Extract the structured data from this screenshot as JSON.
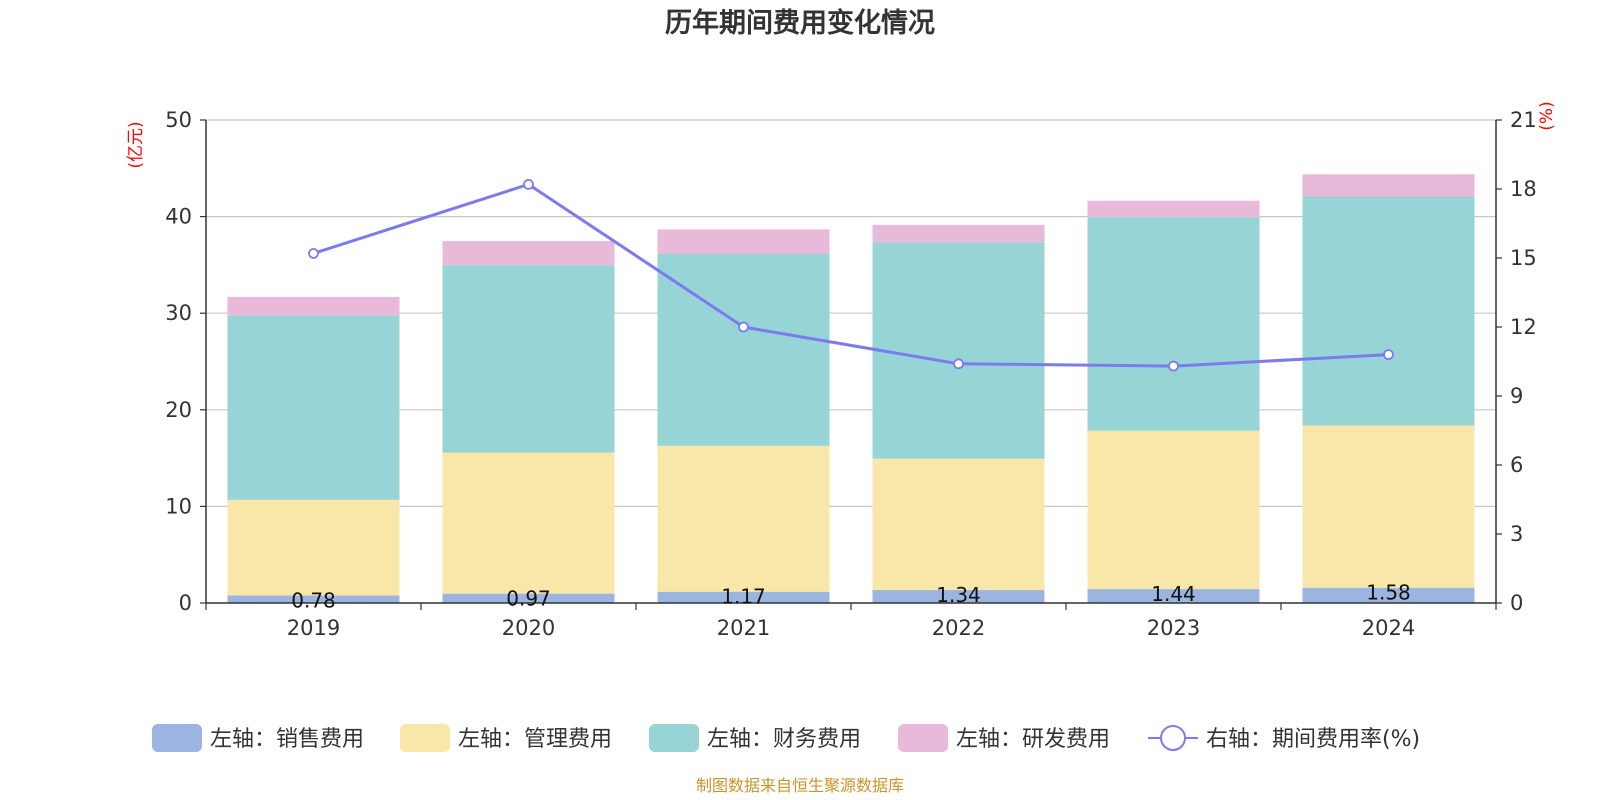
{
  "chart_data": {
    "type": "bar",
    "title": "历年期间费用变化情况",
    "categories": [
      "2019",
      "2020",
      "2021",
      "2022",
      "2023",
      "2024"
    ],
    "left_axis": {
      "unit": "(亿元)",
      "ylim": [
        0,
        50
      ],
      "ticks": [
        "0",
        "10",
        "20",
        "30",
        "40",
        "50"
      ]
    },
    "right_axis": {
      "unit": "(%)",
      "ylim": [
        0,
        21
      ],
      "ticks": [
        "0",
        "3",
        "6",
        "9",
        "12",
        "15",
        "18",
        "21"
      ]
    },
    "series": [
      {
        "name": "左轴：销售费用",
        "type": "bar",
        "stack": true,
        "color": "#9bb5e0",
        "values": [
          0.78,
          0.97,
          1.17,
          1.34,
          1.44,
          1.58
        ],
        "labels": [
          "0.78",
          "0.97",
          "1.17",
          "1.34",
          "1.44",
          "1.58"
        ]
      },
      {
        "name": "左轴：管理费用",
        "type": "bar",
        "stack": true,
        "color": "#f8e7a8",
        "values": [
          9.9,
          14.6,
          15.1,
          13.6,
          16.4,
          16.8
        ]
      },
      {
        "name": "左轴：财务费用",
        "type": "bar",
        "stack": true,
        "color": "#97d4d5",
        "values": [
          19.1,
          19.4,
          19.9,
          22.4,
          22.1,
          23.7
        ]
      },
      {
        "name": "左轴：研发费用",
        "type": "bar",
        "stack": true,
        "color": "#e8b9d9",
        "values": [
          1.9,
          2.5,
          2.5,
          1.8,
          1.7,
          2.3
        ]
      },
      {
        "name": "右轴：期间费用率(%)",
        "type": "line",
        "axis": "right",
        "color": "#7b7bef",
        "values": [
          15.2,
          18.2,
          12.0,
          10.4,
          10.3,
          10.8
        ]
      }
    ],
    "grid": true,
    "legend": "bottom"
  },
  "source": "制图数据来自恒生聚源数据库"
}
